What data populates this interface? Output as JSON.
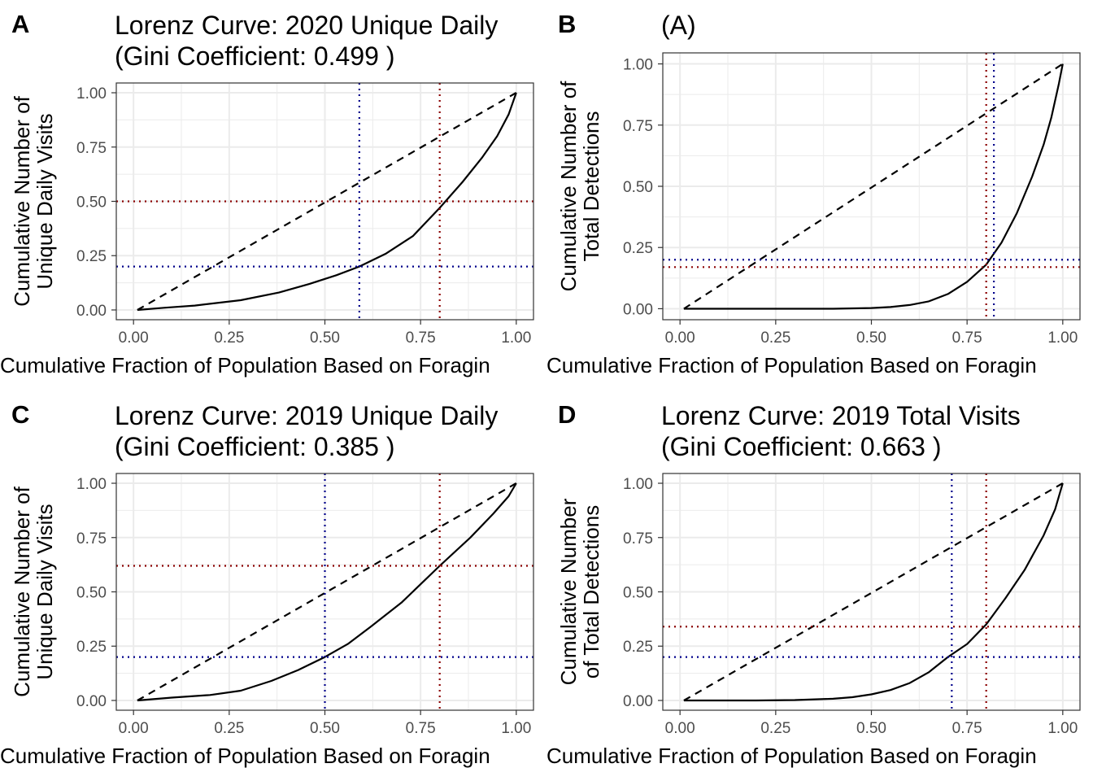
{
  "figure": {
    "colors": {
      "curve": "#000000",
      "equality": "#000000",
      "red_reference": "#8b0000",
      "blue_reference": "#00008b",
      "grid": "#ebebeb",
      "border": "#333333",
      "tick_text": "#4d4d4d"
    }
  },
  "chart_data": [
    {
      "type": "line",
      "tag": "A",
      "title_lines": [
        "Lorenz Curve: 2020 Unique Daily",
        "(Gini Coefficient: 0.499 )"
      ],
      "xlabel": "Cumulative Fraction of Population Based on Foragin",
      "ylabel_lines": [
        "Cumulative Number of",
        "Unique Daily Visits"
      ],
      "xlim": [
        0,
        1
      ],
      "ylim": [
        0,
        1
      ],
      "x_ticks": [
        0,
        0.25,
        0.5,
        0.75,
        1
      ],
      "x_tick_labels": [
        "0.00",
        "0.25",
        "0.50",
        "0.75",
        "1.00"
      ],
      "y_ticks": [
        0,
        0.25,
        0.5,
        0.75,
        1
      ],
      "y_tick_labels": [
        "0.00",
        "0.25",
        "0.50",
        "0.75",
        "1.00"
      ],
      "grid": true,
      "series": [
        {
          "style": "solid",
          "x": [
            0.01,
            0.08,
            0.16,
            0.28,
            0.38,
            0.46,
            0.53,
            0.59,
            0.66,
            0.73,
            0.8,
            0.86,
            0.91,
            0.95,
            0.98,
            1.0
          ],
          "y": [
            0.0,
            0.01,
            0.02,
            0.045,
            0.08,
            0.12,
            0.16,
            0.2,
            0.26,
            0.34,
            0.47,
            0.59,
            0.7,
            0.8,
            0.9,
            1.0
          ]
        },
        {
          "style": "dashed",
          "x": [
            0.01,
            1.0
          ],
          "y": [
            0.0,
            1.0
          ]
        }
      ],
      "reference_lines": [
        {
          "axis": "x",
          "value": 0.59,
          "color": "blue"
        },
        {
          "axis": "y",
          "value": 0.2,
          "color": "blue"
        },
        {
          "axis": "x",
          "value": 0.8,
          "color": "red"
        },
        {
          "axis": "y",
          "value": 0.5,
          "color": "red"
        }
      ]
    },
    {
      "type": "line",
      "tag": "B",
      "title_lines": [
        "(A)"
      ],
      "xlabel": "Cumulative Fraction of Population Based on Foragin",
      "ylabel_lines": [
        "Cumulative Number of",
        "Total Detections"
      ],
      "xlim": [
        0,
        1
      ],
      "ylim": [
        0,
        1
      ],
      "x_ticks": [
        0,
        0.25,
        0.5,
        0.75,
        1
      ],
      "x_tick_labels": [
        "0.00",
        "0.25",
        "0.50",
        "0.75",
        "1.00"
      ],
      "y_ticks": [
        0,
        0.25,
        0.5,
        0.75,
        1
      ],
      "y_tick_labels": [
        "0.00",
        "0.25",
        "0.50",
        "0.75",
        "1.00"
      ],
      "grid": true,
      "series": [
        {
          "style": "solid",
          "x": [
            0.01,
            0.2,
            0.4,
            0.5,
            0.55,
            0.6,
            0.65,
            0.7,
            0.75,
            0.8,
            0.84,
            0.88,
            0.92,
            0.95,
            0.97,
            0.99,
            1.0
          ],
          "y": [
            0.0,
            0.0,
            0.0,
            0.003,
            0.007,
            0.015,
            0.03,
            0.06,
            0.11,
            0.18,
            0.27,
            0.39,
            0.54,
            0.67,
            0.78,
            0.92,
            1.0
          ]
        },
        {
          "style": "dashed",
          "x": [
            0.01,
            1.0
          ],
          "y": [
            0.0,
            1.0
          ]
        }
      ],
      "reference_lines": [
        {
          "axis": "x",
          "value": 0.82,
          "color": "blue"
        },
        {
          "axis": "y",
          "value": 0.2,
          "color": "blue"
        },
        {
          "axis": "x",
          "value": 0.8,
          "color": "red"
        },
        {
          "axis": "y",
          "value": 0.17,
          "color": "red"
        }
      ]
    },
    {
      "type": "line",
      "tag": "C",
      "title_lines": [
        "Lorenz Curve: 2019 Unique Daily",
        "(Gini Coefficient: 0.385 )"
      ],
      "xlabel": "Cumulative Fraction of Population Based on Foragin",
      "ylabel_lines": [
        "Cumulative Number of",
        "Unique Daily Visits"
      ],
      "xlim": [
        0,
        1
      ],
      "ylim": [
        0,
        1
      ],
      "x_ticks": [
        0,
        0.25,
        0.5,
        0.75,
        1
      ],
      "x_tick_labels": [
        "0.00",
        "0.25",
        "0.50",
        "0.75",
        "1.00"
      ],
      "y_ticks": [
        0,
        0.25,
        0.5,
        0.75,
        1
      ],
      "y_tick_labels": [
        "0.00",
        "0.25",
        "0.50",
        "0.75",
        "1.00"
      ],
      "grid": true,
      "series": [
        {
          "style": "solid",
          "x": [
            0.01,
            0.1,
            0.2,
            0.28,
            0.36,
            0.43,
            0.5,
            0.56,
            0.62,
            0.7,
            0.8,
            0.88,
            0.94,
            0.98,
            1.0
          ],
          "y": [
            0.0,
            0.013,
            0.025,
            0.045,
            0.09,
            0.14,
            0.2,
            0.26,
            0.34,
            0.45,
            0.62,
            0.75,
            0.86,
            0.94,
            1.0
          ]
        },
        {
          "style": "dashed",
          "x": [
            0.01,
            1.0
          ],
          "y": [
            0.0,
            1.0
          ]
        }
      ],
      "reference_lines": [
        {
          "axis": "x",
          "value": 0.5,
          "color": "blue"
        },
        {
          "axis": "y",
          "value": 0.2,
          "color": "blue"
        },
        {
          "axis": "x",
          "value": 0.8,
          "color": "red"
        },
        {
          "axis": "y",
          "value": 0.62,
          "color": "red"
        }
      ]
    },
    {
      "type": "line",
      "tag": "D",
      "title_lines": [
        "Lorenz Curve: 2019 Total Visits",
        "(Gini Coefficient: 0.663 )"
      ],
      "xlabel": "Cumulative Fraction of Population Based on Foragin",
      "ylabel_lines": [
        "Cumulative Number",
        "of Total Detections"
      ],
      "xlim": [
        0,
        1
      ],
      "ylim": [
        0,
        1
      ],
      "x_ticks": [
        0,
        0.25,
        0.5,
        0.75,
        1
      ],
      "x_tick_labels": [
        "0.00",
        "0.25",
        "0.50",
        "0.75",
        "1.00"
      ],
      "y_ticks": [
        0,
        0.25,
        0.5,
        0.75,
        1
      ],
      "y_tick_labels": [
        "0.00",
        "0.25",
        "0.50",
        "0.75",
        "1.00"
      ],
      "grid": true,
      "series": [
        {
          "style": "solid",
          "x": [
            0.01,
            0.2,
            0.3,
            0.4,
            0.45,
            0.5,
            0.55,
            0.6,
            0.65,
            0.7,
            0.75,
            0.8,
            0.85,
            0.9,
            0.95,
            0.98,
            1.0
          ],
          "y": [
            0.0,
            0.0,
            0.002,
            0.008,
            0.015,
            0.028,
            0.048,
            0.08,
            0.13,
            0.2,
            0.26,
            0.35,
            0.47,
            0.6,
            0.76,
            0.88,
            1.0
          ]
        },
        {
          "style": "dashed",
          "x": [
            0.01,
            1.0
          ],
          "y": [
            0.0,
            1.0
          ]
        }
      ],
      "reference_lines": [
        {
          "axis": "x",
          "value": 0.71,
          "color": "blue"
        },
        {
          "axis": "y",
          "value": 0.2,
          "color": "blue"
        },
        {
          "axis": "x",
          "value": 0.8,
          "color": "red"
        },
        {
          "axis": "y",
          "value": 0.34,
          "color": "red"
        }
      ]
    }
  ]
}
